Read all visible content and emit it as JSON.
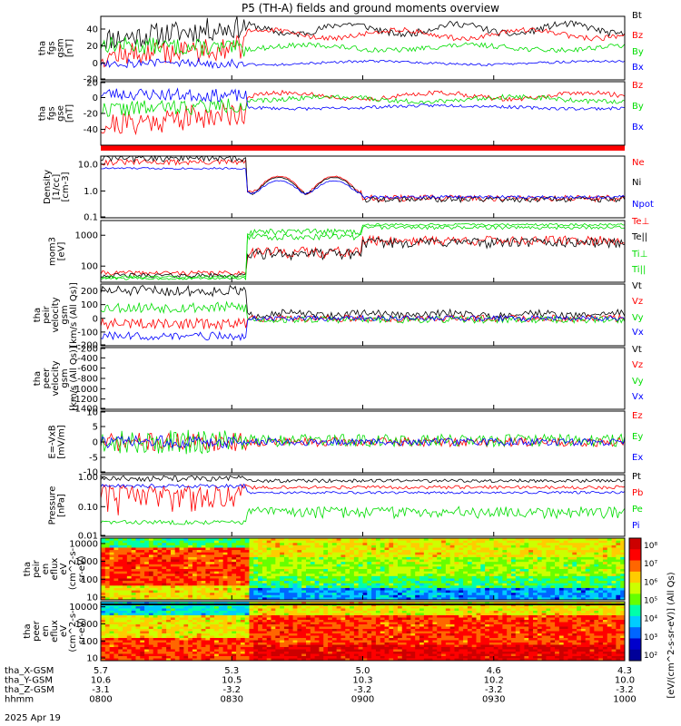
{
  "title": "P5 (TH-A) fields and ground moments overview",
  "colors": {
    "black": "#000000",
    "red": "#ff0000",
    "green": "#00dd00",
    "blue": "#0000ff"
  },
  "chart_data": [
    {
      "type": "line",
      "ylabel_lines": [
        "tha",
        "fgs",
        "gsm",
        "[nT]"
      ],
      "ylim": [
        -20,
        55
      ],
      "ticks": [
        "40",
        "20",
        "0",
        "-20"
      ],
      "series": [
        {
          "name": "Bt",
          "color": "black"
        },
        {
          "name": "Bz",
          "color": "red"
        },
        {
          "name": "By",
          "color": "green"
        },
        {
          "name": "Bx",
          "color": "blue"
        }
      ]
    },
    {
      "type": "line",
      "ylabel_lines": [
        "tha",
        "fgs",
        "gse",
        "[nT]"
      ],
      "ylim": [
        -60,
        20
      ],
      "ticks": [
        "20",
        "0",
        "-20",
        "-40"
      ],
      "series": [
        {
          "name": "Bz",
          "color": "red"
        },
        {
          "name": "By",
          "color": "green"
        },
        {
          "name": "Bx",
          "color": "blue"
        }
      ]
    },
    {
      "type": "line",
      "ylabel_lines": [
        "Density",
        "[1/cc]",
        "[cm-3]"
      ],
      "log": true,
      "ylim": [
        0.1,
        20
      ],
      "ticks": [
        "10.0",
        "1.0",
        "0.1"
      ],
      "series": [
        {
          "name": "Ne",
          "color": "red"
        },
        {
          "name": "Ni",
          "color": "black"
        },
        {
          "name": "Npot",
          "color": "blue"
        }
      ]
    },
    {
      "type": "line",
      "ylabel_lines": [
        "mom3",
        "[eV]"
      ],
      "log": true,
      "ylim": [
        30,
        3000
      ],
      "ticks": [
        "1000",
        "100"
      ],
      "series": [
        {
          "name": "Te⊥",
          "color": "red"
        },
        {
          "name": "Te||",
          "color": "black"
        },
        {
          "name": "Ti⊥",
          "color": "green"
        },
        {
          "name": "Ti||",
          "color": "green"
        }
      ]
    },
    {
      "type": "line",
      "ylabel_lines": [
        "tha",
        "peir",
        "velocity",
        "gsm",
        "[km/s (All Qs)]"
      ],
      "ylim": [
        -200,
        250
      ],
      "ticks": [
        "200",
        "100",
        "0",
        "-100",
        "-200"
      ],
      "series": [
        {
          "name": "Vt",
          "color": "black"
        },
        {
          "name": "Vz",
          "color": "red"
        },
        {
          "name": "Vy",
          "color": "green"
        },
        {
          "name": "Vx",
          "color": "blue"
        }
      ]
    },
    {
      "type": "line",
      "ylabel_lines": [
        "tha",
        "peer",
        "velocity",
        "gsm",
        "[km/s (All Qs)]"
      ],
      "ylim": [
        -1400,
        -200
      ],
      "ticks": [
        "-200",
        "-400",
        "-600",
        "-800",
        "-1000",
        "-1200",
        "-1400"
      ],
      "series": [
        {
          "name": "Vt",
          "color": "black"
        },
        {
          "name": "Vz",
          "color": "red"
        },
        {
          "name": "Vy",
          "color": "green"
        },
        {
          "name": "Vx",
          "color": "blue"
        }
      ]
    },
    {
      "type": "line",
      "ylabel_lines": [
        "E=-VxB",
        "[mV/m]"
      ],
      "ylim": [
        -10,
        10
      ],
      "ticks": [
        "10",
        "5",
        "0",
        "-5",
        "-10"
      ],
      "series": [
        {
          "name": "Ez",
          "color": "red"
        },
        {
          "name": "Ey",
          "color": "green"
        },
        {
          "name": "Ex",
          "color": "blue"
        }
      ]
    },
    {
      "type": "line",
      "ylabel_lines": [
        "Pressure",
        "[nPa]"
      ],
      "log": true,
      "ylim": [
        0.01,
        1.2
      ],
      "ticks": [
        "1.00",
        "0.10",
        "0.01"
      ],
      "series": [
        {
          "name": "Pt",
          "color": "black"
        },
        {
          "name": "Pb",
          "color": "red"
        },
        {
          "name": "Pe",
          "color": "green"
        },
        {
          "name": "Pi",
          "color": "blue"
        }
      ]
    },
    {
      "type": "heatmap",
      "ylabel_lines": [
        "tha",
        "peir",
        "en",
        "eflux",
        "eV",
        "(cm^2-s-",
        "sr-eV)"
      ],
      "log": true,
      "ylim": [
        7,
        20000
      ],
      "ticks": [
        "10000",
        "1000",
        "100",
        "10"
      ]
    },
    {
      "type": "heatmap",
      "ylabel_lines": [
        "tha",
        "peer",
        "en",
        "eflux",
        "eV",
        "(cm^2-s-",
        "sr-eV)"
      ],
      "log": true,
      "ylim": [
        7,
        20000
      ],
      "ticks": [
        "10000",
        "1000",
        "100",
        "10"
      ]
    }
  ],
  "colorbar": {
    "label": "[eV/(cm^2-s-sr-eV)] (All Qs)",
    "ticks": [
      "10⁸",
      "10⁷",
      "10⁶",
      "10⁵",
      "10⁴",
      "10³",
      "10²"
    ]
  },
  "axis_table": {
    "rows": [
      {
        "label": "tha_X-GSM",
        "values": [
          "5.7",
          "5.3",
          "5.0",
          "4.6",
          "4.3"
        ]
      },
      {
        "label": "tha_Y-GSM",
        "values": [
          "10.6",
          "10.5",
          "10.3",
          "10.2",
          "10.0"
        ]
      },
      {
        "label": "tha_Z-GSM",
        "values": [
          "-3.1",
          "-3.2",
          "-3.2",
          "-3.2",
          "-3.2"
        ]
      },
      {
        "label": "hhmm",
        "values": [
          "0800",
          "0830",
          "0900",
          "0930",
          "1000"
        ]
      }
    ],
    "date": "2025 Apr 19"
  }
}
